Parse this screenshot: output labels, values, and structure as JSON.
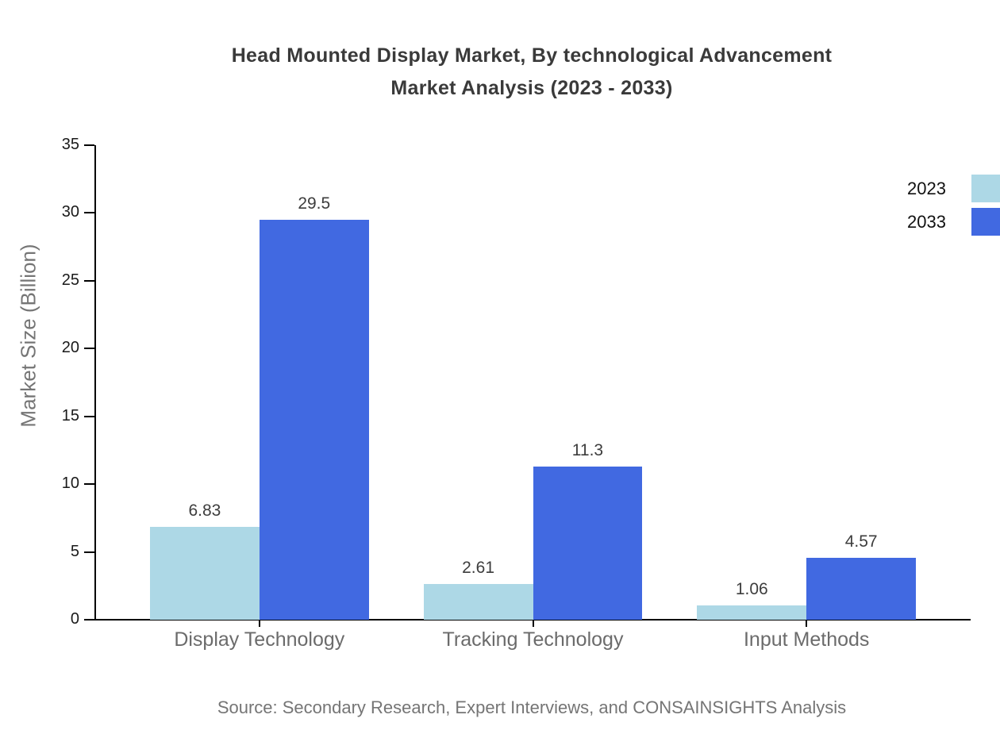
{
  "title": {
    "line1": "Head Mounted Display Market, By technological Advancement",
    "line2": "Market Analysis (2023 - 2033)"
  },
  "y_axis": {
    "label": "Market Size (Billion)",
    "tick_labels": [
      "0",
      "5",
      "10",
      "15",
      "20",
      "25",
      "30",
      "35"
    ]
  },
  "legend": {
    "position": "upper-right",
    "items": [
      {
        "label": "2023",
        "color": "#add8e6"
      },
      {
        "label": "2033",
        "color": "#4169e1"
      }
    ]
  },
  "source": "Source: Secondary Research, Expert Interviews, and CONSAINSIGHTS Analysis",
  "chart_data": {
    "type": "bar",
    "title": "Head Mounted Display Market, By technological Advancement Market Analysis (2023 - 2033)",
    "categories": [
      "Display Technology",
      "Tracking Technology",
      "Input Methods"
    ],
    "series": [
      {
        "name": "2023",
        "color": "#add8e6",
        "values": [
          6.83,
          2.61,
          1.06
        ],
        "value_labels": [
          "6.83",
          "2.61",
          "1.06"
        ]
      },
      {
        "name": "2033",
        "color": "#4169e1",
        "values": [
          29.5,
          11.3,
          4.57
        ],
        "value_labels": [
          "29.5",
          "11.3",
          "4.57"
        ]
      }
    ],
    "xlabel": "",
    "ylabel": "Market Size (Billion)",
    "ylim": [
      0,
      35
    ],
    "yticks": [
      0,
      5,
      10,
      15,
      20,
      25,
      30,
      35
    ],
    "grid": false,
    "legend_position": "upper right"
  },
  "colors": {
    "series_2023": "#add8e6",
    "series_2033": "#4169e1",
    "title_text": "#3a3a3a",
    "axis": "#000000",
    "tick_label_text": "#1a1a1a",
    "category_label_text": "#6b6b6b",
    "value_label_text": "#3d3d3d",
    "muted_text": "#757575",
    "background": "#ffffff"
  }
}
